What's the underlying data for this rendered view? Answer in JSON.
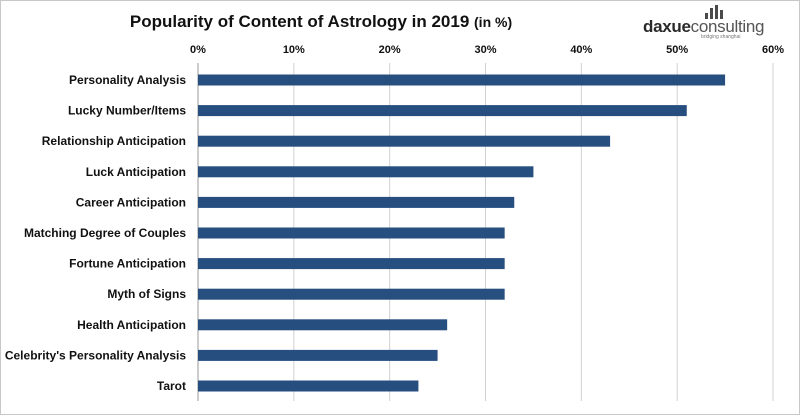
{
  "header": {
    "title": "Popularity of Content of Astrology in 2019",
    "title_unit": "(in %)"
  },
  "logo": {
    "name_part1": "daxue",
    "name_part2": "consulting",
    "tagline": "bridging shanghai"
  },
  "colors": {
    "bar": "#264e7f",
    "gridline": "#d0d0d0",
    "axis_text": "#111111"
  },
  "chart_data": {
    "type": "bar",
    "orientation": "horizontal",
    "title": "Popularity of Content of Astrology in 2019 (in %)",
    "categories": [
      "Personality Analysis",
      "Lucky Number/Items",
      "Relationship Anticipation",
      "Luck Anticipation",
      "Career Anticipation",
      "Matching Degree of Couples",
      "Fortune Anticipation",
      "Myth of Signs",
      "Health Anticipation",
      "Celebrity's Personality Analysis",
      "Tarot"
    ],
    "values": [
      55,
      51,
      43,
      35,
      33,
      32,
      32,
      32,
      26,
      25,
      23
    ],
    "xlim": [
      0,
      60
    ],
    "ticks": [
      "0%",
      "10%",
      "20%",
      "30%",
      "40%",
      "50%",
      "60%"
    ],
    "tick_values": [
      0,
      10,
      20,
      30,
      40,
      50,
      60
    ],
    "axis_position": "top",
    "grid": true,
    "legend": "none"
  }
}
